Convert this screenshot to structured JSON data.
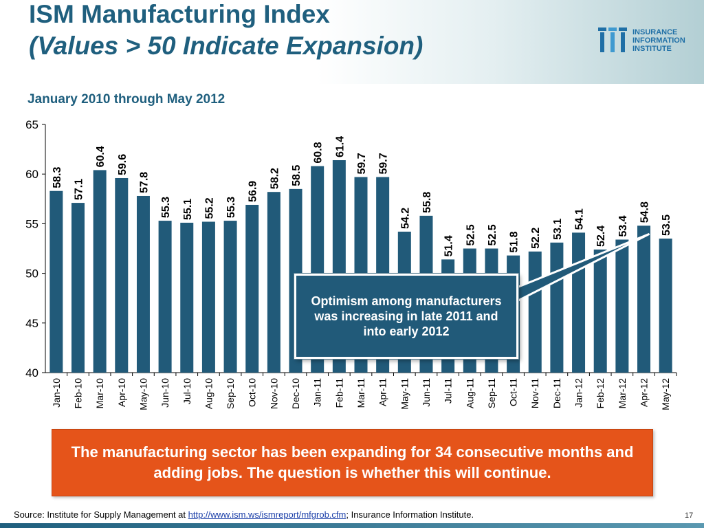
{
  "header": {
    "title": "ISM Manufacturing Index",
    "subtitle": "(Values > 50 Indicate Expansion)",
    "logo_lines": [
      "INSURANCE",
      "INFORMATION",
      "INSTITUTE"
    ],
    "logo_mark": "III"
  },
  "date_range": "January 2010 through May 2012",
  "callout": "Optimism among manufacturers was increasing in late 2011 and into early 2012",
  "banner": "The manufacturing sector has been expanding for 34 consecutive months and adding jobs.  The question is whether this will continue.",
  "source": {
    "prefix": "Source: Institute for Supply Management at ",
    "link": "http://www.ism.ws/ismreport/mfgrob.cfm",
    "suffix": "; Insurance Information Institute."
  },
  "page_number": "17",
  "colors": {
    "bar": "#215a79",
    "title": "#1f5f7e",
    "banner": "#e5541a"
  },
  "chart_data": {
    "type": "bar",
    "title": "",
    "xlabel": "",
    "ylabel": "",
    "ylim": [
      40,
      65
    ],
    "yticks": [
      40,
      45,
      50,
      55,
      60,
      65
    ],
    "grid": false,
    "categories": [
      "Jan-10",
      "Feb-10",
      "Mar-10",
      "Apr-10",
      "May-10",
      "Jun-10",
      "Jul-10",
      "Aug-10",
      "Sep-10",
      "Oct-10",
      "Nov-10",
      "Dec-10",
      "Jan-11",
      "Feb-11",
      "Mar-11",
      "Apr-11",
      "May-11",
      "Jun-11",
      "Jul-11",
      "Aug-11",
      "Sep-11",
      "Oct-11",
      "Nov-11",
      "Dec-11",
      "Jan-12",
      "Feb-12",
      "Mar-12",
      "Apr-12",
      "May-12"
    ],
    "values": [
      58.3,
      57.1,
      60.4,
      59.6,
      57.8,
      55.3,
      55.1,
      55.2,
      55.3,
      56.9,
      58.2,
      58.5,
      60.8,
      61.4,
      59.7,
      59.7,
      54.2,
      55.8,
      51.4,
      52.5,
      52.5,
      51.8,
      52.2,
      53.1,
      54.1,
      52.4,
      53.4,
      54.8,
      53.5
    ],
    "data_labels": [
      "58.3",
      "57.1",
      "60.4",
      "59.6",
      "57.8",
      "55.3",
      "55.1",
      "55.2",
      "55.3",
      "56.9",
      "58.2",
      "58.5",
      "60.8",
      "61.4",
      "59.7",
      "59.7",
      "54.2",
      "55.8",
      "51.4",
      "52.5",
      "52.5",
      "51.8",
      "52.2",
      "53.1",
      "54.1",
      "52.4",
      "53.4",
      "54.8",
      "53.5"
    ]
  }
}
